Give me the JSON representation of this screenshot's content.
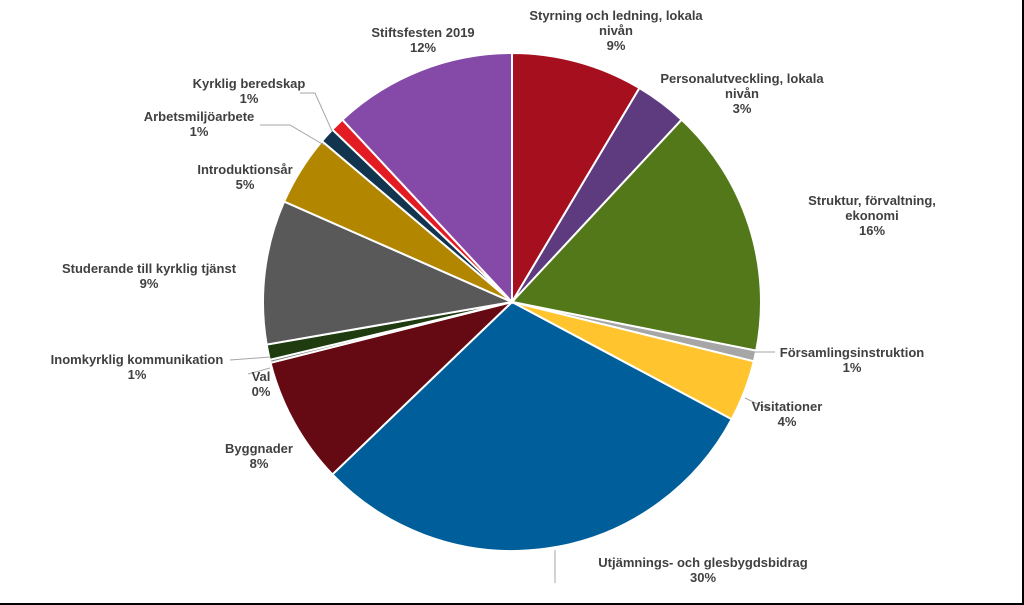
{
  "chart_data": {
    "type": "pie",
    "start_angle_deg": 0,
    "direction": "clockwise",
    "slices": [
      {
        "label": [
          "Styrning och ledning, lokala",
          "nivån"
        ],
        "pct_label": "9%",
        "value": 8.6,
        "color": "#A50F1E"
      },
      {
        "label": [
          "Personalutveckling, lokala",
          "nivån"
        ],
        "pct_label": "3%",
        "value": 3.4,
        "color": "#5E3A7E"
      },
      {
        "label": [
          "Struktur, förvaltning,",
          "ekonomi"
        ],
        "pct_label": "16%",
        "value": 16.3,
        "color": "#53781A"
      },
      {
        "label": [
          "Församlingsinstruktion"
        ],
        "pct_label": "1%",
        "value": 0.7,
        "color": "#A6A6A6"
      },
      {
        "label": [
          "Visitationer"
        ],
        "pct_label": "4%",
        "value": 4.0,
        "color": "#FFC42E"
      },
      {
        "label": [
          "Utjämnings- och glesbygdsbidrag"
        ],
        "pct_label": "30%",
        "value": 30.2,
        "color": "#005E9A"
      },
      {
        "label": [
          "Byggnader"
        ],
        "pct_label": "8%",
        "value": 8.3,
        "color": "#650A12"
      },
      {
        "label": [
          "Val"
        ],
        "pct_label": "0%",
        "value": 0.2,
        "color": "#7F7F7F"
      },
      {
        "label": [
          "Inomkyrklig kommunikation"
        ],
        "pct_label": "1%",
        "value": 1.0,
        "color": "#1E3C10"
      },
      {
        "label": [
          "Studerande till kyrklig tjänst"
        ],
        "pct_label": "9%",
        "value": 9.4,
        "color": "#595959"
      },
      {
        "label": [
          "Introduktionsår"
        ],
        "pct_label": "5%",
        "value": 4.6,
        "color": "#B38600"
      },
      {
        "label": [
          "Arbetsmiljöarbete"
        ],
        "pct_label": "1%",
        "value": 1.0,
        "color": "#12344F"
      },
      {
        "label": [
          "Kyrklig beredskap"
        ],
        "pct_label": "1%",
        "value": 0.9,
        "color": "#E31B23"
      },
      {
        "label": [
          "Stiftsfesten 2019"
        ],
        "pct_label": "12%",
        "value": 12.0,
        "color": "#8549A8"
      }
    ]
  }
}
